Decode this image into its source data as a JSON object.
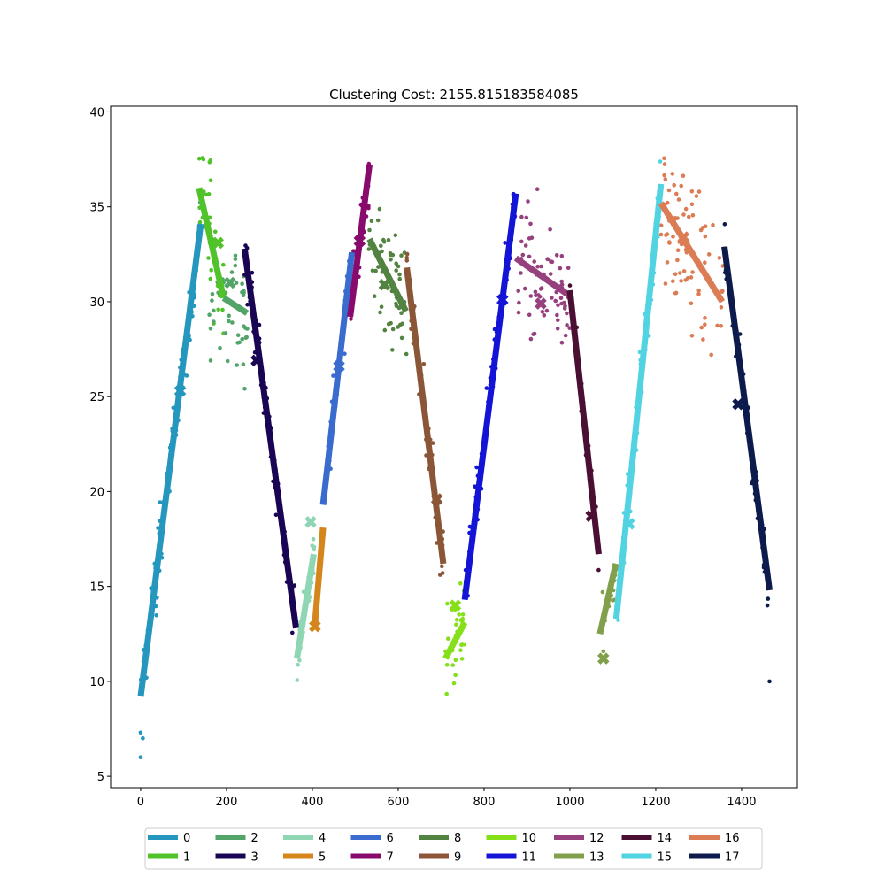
{
  "chart_data": {
    "type": "scatter",
    "title": "Clustering Cost: 2155.815183584085",
    "xlabel": "",
    "ylabel": "",
    "xlim": [
      -70,
      1530
    ],
    "ylim": [
      4.4,
      40.3
    ],
    "xticks": [
      0,
      200,
      400,
      600,
      800,
      1000,
      1200,
      1400
    ],
    "yticks": [
      5,
      10,
      15,
      20,
      25,
      30,
      35,
      40
    ],
    "grid": false,
    "legend_position": "bottom",
    "legend_ncol": 9,
    "series": [
      {
        "name": "0",
        "color": "#2596be",
        "segment": [
          [
            0,
            9.2
          ],
          [
            140,
            34.1
          ]
        ],
        "centroid": [
          92,
          25.3
        ],
        "x_range": [
          0,
          140
        ],
        "y_band": 1.2,
        "n": 85
      },
      {
        "name": "1",
        "color": "#50c22a",
        "segment": [
          [
            136,
            36.0
          ],
          [
            193,
            30.2
          ]
        ],
        "centroid": [
          180,
          33.1
        ],
        "x_range": [
          136,
          193
        ],
        "y_band": 2.2,
        "n": 35
      },
      {
        "name": "2",
        "color": "#52a468",
        "segment": [
          [
            193,
            30.2
          ],
          [
            248,
            29.4
          ]
        ],
        "centroid": [
          208,
          31.0
        ],
        "x_range": [
          160,
          250
        ],
        "y_band": 2.2,
        "n": 45
      },
      {
        "name": "3",
        "color": "#1a0554",
        "segment": [
          [
            242,
            32.8
          ],
          [
            362,
            12.8
          ]
        ],
        "centroid": [
          270,
          26.9
        ],
        "x_range": [
          242,
          362
        ],
        "y_band": 1.0,
        "n": 70
      },
      {
        "name": "4",
        "color": "#8fd6b4",
        "segment": [
          [
            364,
            11.2
          ],
          [
            403,
            16.7
          ]
        ],
        "centroid": [
          396,
          18.4
        ],
        "x_range": [
          364,
          405
        ],
        "y_band": 1.0,
        "n": 30
      },
      {
        "name": "5",
        "color": "#d4861c",
        "segment": [
          [
            405,
            12.8
          ],
          [
            425,
            18.1
          ]
        ],
        "centroid": [
          406,
          12.9
        ],
        "x_range": [
          400,
          425
        ],
        "y_band": 0.6,
        "n": 6
      },
      {
        "name": "6",
        "color": "#3a6bce",
        "segment": [
          [
            425,
            19.3
          ],
          [
            492,
            32.6
          ]
        ],
        "centroid": [
          462,
          26.6
        ],
        "x_range": [
          425,
          492
        ],
        "y_band": 1.0,
        "n": 45
      },
      {
        "name": "7",
        "color": "#870a6c",
        "segment": [
          [
            488,
            29.2
          ],
          [
            533,
            37.2
          ]
        ],
        "centroid": [
          510,
          33.2
        ],
        "x_range": [
          488,
          533
        ],
        "y_band": 1.5,
        "n": 25
      },
      {
        "name": "8",
        "color": "#528340",
        "segment": [
          [
            533,
            33.3
          ],
          [
            618,
            29.5
          ]
        ],
        "centroid": [
          568,
          30.9
        ],
        "x_range": [
          530,
          620
        ],
        "y_band": 2.0,
        "n": 55
      },
      {
        "name": "9",
        "color": "#8b5637",
        "segment": [
          [
            620,
            31.8
          ],
          [
            705,
            16.2
          ]
        ],
        "centroid": [
          690,
          19.6
        ],
        "x_range": [
          620,
          705
        ],
        "y_band": 1.2,
        "n": 50
      },
      {
        "name": "10",
        "color": "#85e01a",
        "segment": [
          [
            710,
            11.2
          ],
          [
            755,
            13.1
          ]
        ],
        "centroid": [
          733,
          14.0
        ],
        "x_range": [
          710,
          755
        ],
        "y_band": 1.6,
        "n": 30
      },
      {
        "name": "11",
        "color": "#1414d6",
        "segment": [
          [
            755,
            14.3
          ],
          [
            874,
            35.7
          ]
        ],
        "centroid": [
          843,
          30.1
        ],
        "x_range": [
          755,
          874
        ],
        "y_band": 1.0,
        "n": 80
      },
      {
        "name": "12",
        "color": "#96417e",
        "segment": [
          [
            874,
            32.3
          ],
          [
            1000,
            30.3
          ]
        ],
        "centroid": [
          932,
          29.9
        ],
        "x_range": [
          874,
          1000
        ],
        "y_band": 2.2,
        "n": 70
      },
      {
        "name": "13",
        "color": "#82a04c",
        "segment": [
          [
            1070,
            12.5
          ],
          [
            1107,
            16.2
          ]
        ],
        "centroid": [
          1078,
          11.2
        ],
        "x_range": [
          1070,
          1107
        ],
        "y_band": 1.2,
        "n": 12
      },
      {
        "name": "14",
        "color": "#4a0f33",
        "segment": [
          [
            1000,
            30.6
          ],
          [
            1067,
            16.7
          ]
        ],
        "centroid": [
          1050,
          18.7
        ],
        "x_range": [
          1000,
          1067
        ],
        "y_band": 0.8,
        "n": 40
      },
      {
        "name": "15",
        "color": "#52d3e1",
        "segment": [
          [
            1108,
            13.3
          ],
          [
            1212,
            36.2
          ]
        ],
        "centroid": [
          1138,
          18.3
        ],
        "x_range": [
          1108,
          1212
        ],
        "y_band": 1.0,
        "n": 70
      },
      {
        "name": "16",
        "color": "#dc7c55",
        "segment": [
          [
            1212,
            35.2
          ],
          [
            1355,
            30.0
          ]
        ],
        "centroid": [
          1265,
          33.4
        ],
        "x_range": [
          1212,
          1360
        ],
        "y_band": 2.3,
        "n": 80
      },
      {
        "name": "17",
        "color": "#0c1a4c",
        "segment": [
          [
            1360,
            32.9
          ],
          [
            1465,
            14.8
          ]
        ],
        "centroid": [
          1392,
          24.6
        ],
        "x_range": [
          1360,
          1465
        ],
        "y_band": 0.9,
        "n": 60
      }
    ],
    "outliers": [
      {
        "series": "0",
        "x": 0,
        "y": 6.0
      },
      {
        "series": "0",
        "x": 0,
        "y": 7.3
      },
      {
        "series": "0",
        "x": 5,
        "y": 7.0
      },
      {
        "series": "17",
        "x": 1465,
        "y": 10.0
      },
      {
        "series": "17",
        "x": 1460,
        "y": 14.0
      }
    ]
  }
}
